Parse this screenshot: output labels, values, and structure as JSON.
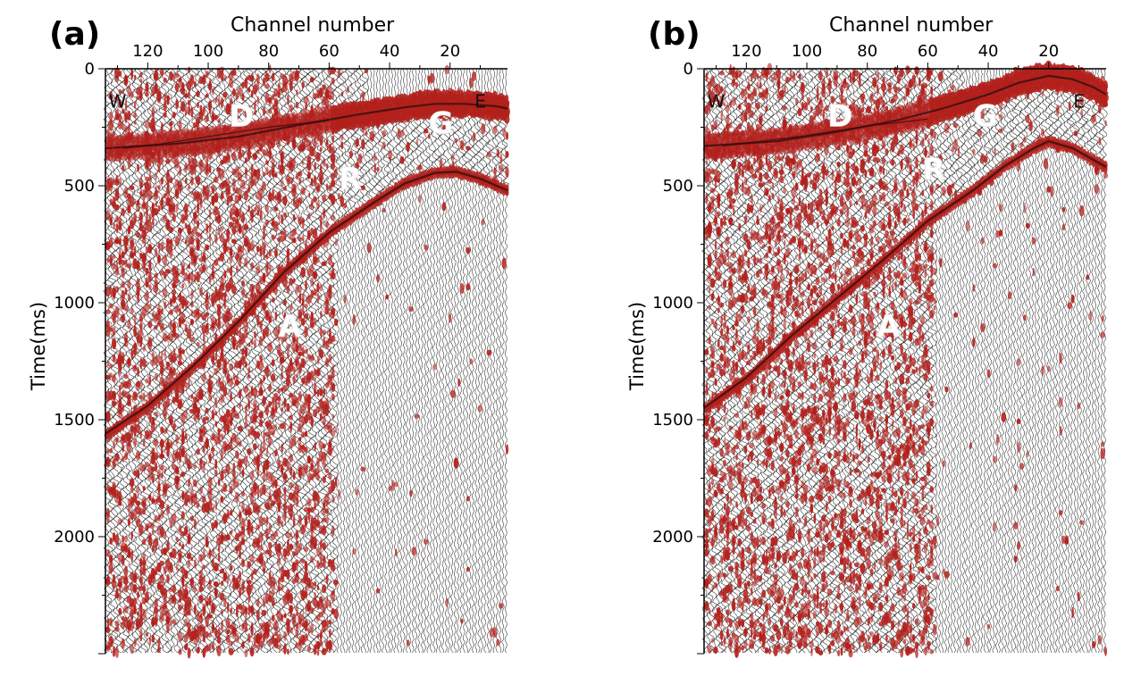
{
  "chart_data": [
    {
      "type": "heatmap",
      "panel_label": "(a)",
      "xlabel": "Channel number",
      "ylabel": "Time(ms)",
      "xlim": [
        134,
        1
      ],
      "ylim": [
        0,
        2500
      ],
      "x_ticks": [
        120,
        100,
        80,
        60,
        40,
        20
      ],
      "y_ticks": [
        0,
        500,
        1000,
        1500,
        2000
      ],
      "wiggle_color": "#000000",
      "fill_color": "#b3201c",
      "direction_labels": [
        {
          "text": "W",
          "channel": 130,
          "time": 90
        },
        {
          "text": "E",
          "channel": 10,
          "time": 90
        }
      ],
      "events": [
        {
          "text": "D",
          "channel": 89,
          "time": 200
        },
        {
          "text": "G",
          "channel": 23,
          "time": 230
        },
        {
          "text": "R",
          "channel": 53,
          "time": 470
        },
        {
          "text": "A",
          "channel": 73,
          "time": 1100
        }
      ],
      "curves": {
        "G": {
          "channels": [
            134,
            110,
            90,
            70,
            50,
            35,
            25,
            15,
            5,
            1
          ],
          "times": [
            340,
            320,
            290,
            240,
            195,
            165,
            150,
            150,
            160,
            170
          ]
        },
        "A": {
          "channels": [
            134,
            120,
            105,
            90,
            75,
            60,
            45,
            35,
            25,
            18,
            10,
            1
          ],
          "times": [
            1560,
            1440,
            1270,
            1080,
            870,
            700,
            570,
            490,
            445,
            440,
            470,
            520
          ]
        },
        "D": {
          "channels": [
            128,
            115,
            100,
            90,
            80,
            70,
            60
          ],
          "times": [
            340,
            320,
            290,
            270,
            250,
            235,
            220
          ]
        }
      }
    },
    {
      "type": "heatmap",
      "panel_label": "(b)",
      "xlabel": "Channel number",
      "ylabel": "Time(ms)",
      "xlim": [
        134,
        1
      ],
      "ylim": [
        0,
        2500
      ],
      "x_ticks": [
        120,
        100,
        80,
        60,
        40,
        20
      ],
      "y_ticks": [
        0,
        500,
        1000,
        1500,
        2000
      ],
      "wiggle_color": "#000000",
      "fill_color": "#b3201c",
      "direction_labels": [
        {
          "text": "W",
          "channel": 130,
          "time": 90
        },
        {
          "text": "E",
          "channel": 10,
          "time": 90
        }
      ],
      "events": [
        {
          "text": "D",
          "channel": 89,
          "time": 200
        },
        {
          "text": "G",
          "channel": 41,
          "time": 200
        },
        {
          "text": "R",
          "channel": 58,
          "time": 430
        },
        {
          "text": "A",
          "channel": 73,
          "time": 1100
        }
      ],
      "curves": {
        "G": {
          "channels": [
            134,
            110,
            90,
            70,
            55,
            40,
            30,
            20,
            12,
            5,
            1
          ],
          "times": [
            330,
            310,
            270,
            220,
            170,
            110,
            60,
            30,
            45,
            80,
            110
          ]
        },
        "A": {
          "channels": [
            134,
            120,
            105,
            90,
            75,
            60,
            45,
            35,
            25,
            20,
            12,
            1
          ],
          "times": [
            1450,
            1320,
            1140,
            980,
            820,
            650,
            520,
            420,
            340,
            310,
            340,
            420
          ]
        },
        "D": {
          "channels": [
            128,
            115,
            100,
            90,
            80,
            70,
            60
          ],
          "times": [
            330,
            310,
            285,
            265,
            245,
            230,
            215
          ]
        }
      }
    }
  ]
}
